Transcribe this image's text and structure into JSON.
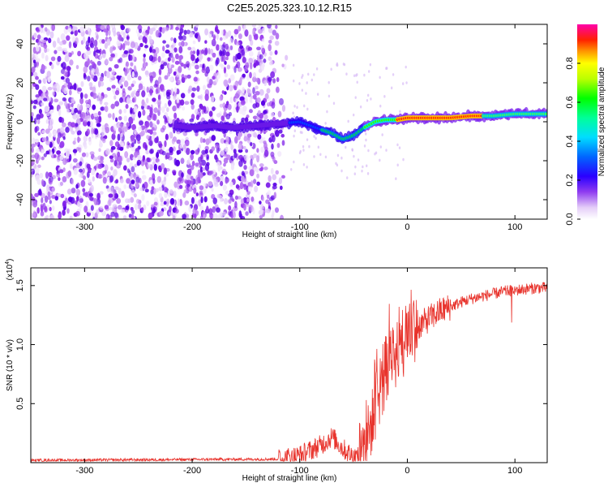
{
  "title": "C2E5.2025.323.10.12.R15",
  "chart_data": [
    {
      "type": "heatmap",
      "name": "spectrogram",
      "xlabel": "Height of straight line (km)",
      "ylabel": "Frequency (Hz)",
      "xlim": [
        -350,
        130
      ],
      "ylim": [
        -50,
        50
      ],
      "xticks": [
        -300,
        -200,
        -100,
        0,
        100
      ],
      "xtick_labels": [
        "-300",
        "-200",
        "-100",
        "0",
        "100"
      ],
      "yticks": [
        -40,
        -20,
        0,
        20,
        40
      ],
      "ytick_labels": [
        "-40",
        "-20",
        "0",
        "20",
        "40"
      ],
      "noise_region_x": [
        -350,
        -110
      ],
      "signal_trace": {
        "x": [
          -215,
          -200,
          -180,
          -160,
          -140,
          -120,
          -100,
          -90,
          -80,
          -70,
          -60,
          -50,
          -40,
          -30,
          -20,
          -10,
          0,
          20,
          40,
          60,
          80,
          100,
          120,
          130
        ],
        "y": [
          -2,
          -3,
          -2,
          -3,
          -2,
          -1,
          0,
          -2,
          -4,
          -6,
          -9,
          -7,
          -3,
          0,
          1,
          1,
          2,
          2,
          2,
          3,
          3,
          4,
          4,
          4
        ]
      },
      "colorbar": {
        "label": "Normalized spectral amplitude",
        "range": [
          0.0,
          1.0
        ],
        "ticks": [
          0.0,
          0.2,
          0.4,
          0.6,
          0.8
        ],
        "tick_labels": [
          "0.0",
          "0.2",
          "0.4",
          "0.6",
          "0.8"
        ]
      }
    },
    {
      "type": "line",
      "name": "snr",
      "xlabel": "Height of straight line (km)",
      "ylabel": "SNR (10 * v/v)",
      "scale_label_prefix": "(x10",
      "scale_label_exp": "4",
      "scale_label_suffix": ")",
      "xlim": [
        -350,
        130
      ],
      "ylim": [
        0,
        1.65
      ],
      "xticks": [
        -300,
        -200,
        -100,
        0,
        100
      ],
      "xtick_labels": [
        "-300",
        "-200",
        "-100",
        "0",
        "100"
      ],
      "yticks": [
        0.5,
        1.0,
        1.5
      ],
      "ytick_labels": [
        "0.5",
        "1.0",
        "1.5"
      ],
      "color": "#e8332c",
      "series_envelope": {
        "x": [
          -350,
          -120,
          -100,
          -80,
          -70,
          -60,
          -50,
          -45,
          -40,
          -30,
          -20,
          -10,
          0,
          10,
          20,
          30,
          40,
          50,
          60,
          70,
          80,
          90,
          100,
          110,
          120,
          130
        ],
        "y": [
          0.02,
          0.03,
          0.06,
          0.15,
          0.22,
          0.12,
          0.05,
          0.04,
          0.1,
          0.45,
          0.75,
          0.95,
          1.08,
          1.15,
          1.22,
          1.28,
          1.32,
          1.36,
          1.39,
          1.41,
          1.43,
          1.45,
          1.46,
          1.47,
          1.48,
          1.48
        ]
      }
    }
  ]
}
